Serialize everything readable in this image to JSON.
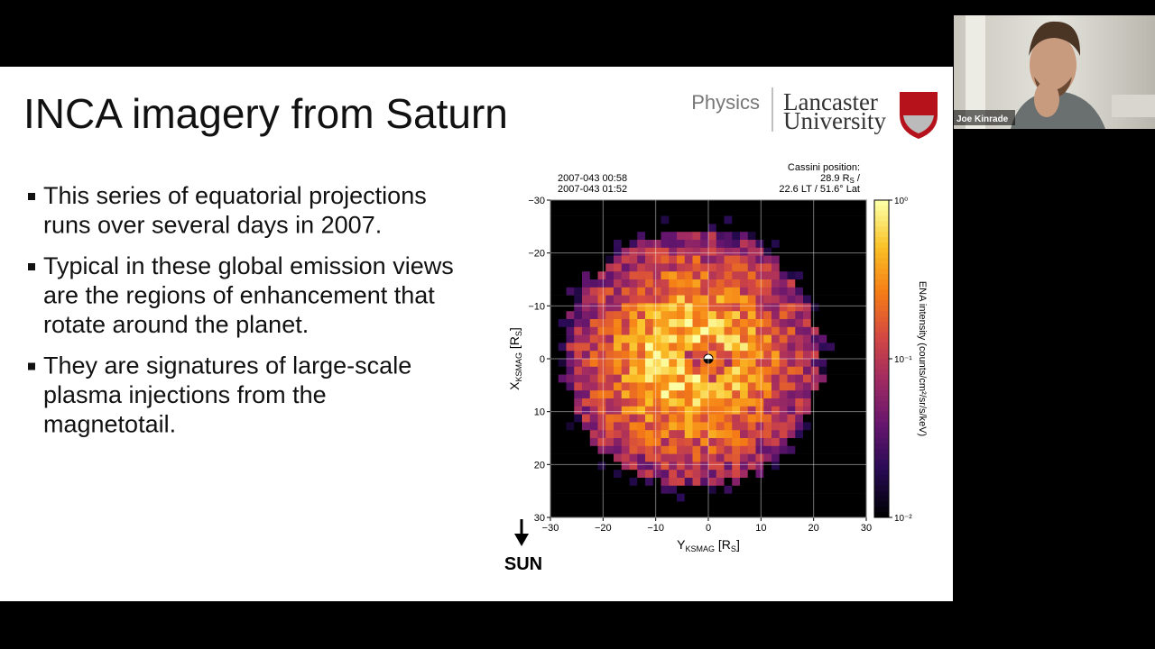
{
  "slide": {
    "title": "INCA imagery from Saturn",
    "logo": {
      "department": "Physics",
      "university_lines": [
        "Lancaster",
        "University"
      ]
    },
    "bullets": [
      [
        "This series of equatorial projections",
        "runs over several days in 2007."
      ],
      [
        "Typical in these global emission views",
        "are the regions of enhancement that",
        "rotate around the planet."
      ],
      [
        "They are signatures of large-scale",
        "plasma injections from the",
        "magnetotail."
      ]
    ],
    "figure": {
      "time_lines": [
        "2007-043 00:58",
        "2007-043 01:52"
      ],
      "position_lines": [
        "Cassini position:",
        "28.9 R",
        "S",
        " /",
        "22.6 LT / 51.6° Lat"
      ],
      "xlim": [
        -30,
        30
      ],
      "ylim": [
        -30,
        30
      ],
      "xticks": [
        {
          "value": -30,
          "label": "−30"
        },
        {
          "value": -20,
          "label": "−20"
        },
        {
          "value": -10,
          "label": "−10"
        },
        0,
        10,
        20,
        30
      ],
      "yticks": [
        {
          "value": -30,
          "label": "−30"
        },
        {
          "value": -20,
          "label": "−20"
        },
        {
          "value": -10,
          "label": "−10"
        },
        0,
        10,
        20,
        30
      ],
      "x_label": [
        "Y",
        "KSMAG",
        " [R",
        "S",
        "]"
      ],
      "y_label": [
        "X",
        "KSMAG",
        " [R",
        "S",
        "]"
      ],
      "colorbar_ticks": [
        {
          "value": 1,
          "label": "10⁰"
        },
        {
          "value": 0.1,
          "label": "10⁻¹"
        },
        {
          "value": 0.01,
          "label": "10⁻²"
        }
      ],
      "colorbar_label": "ENA intensity (counts/cm²/sr/s/keV)",
      "sun_label": "SUN",
      "grid": true
    }
  },
  "participant": {
    "name": "Joe Kinrade"
  }
}
